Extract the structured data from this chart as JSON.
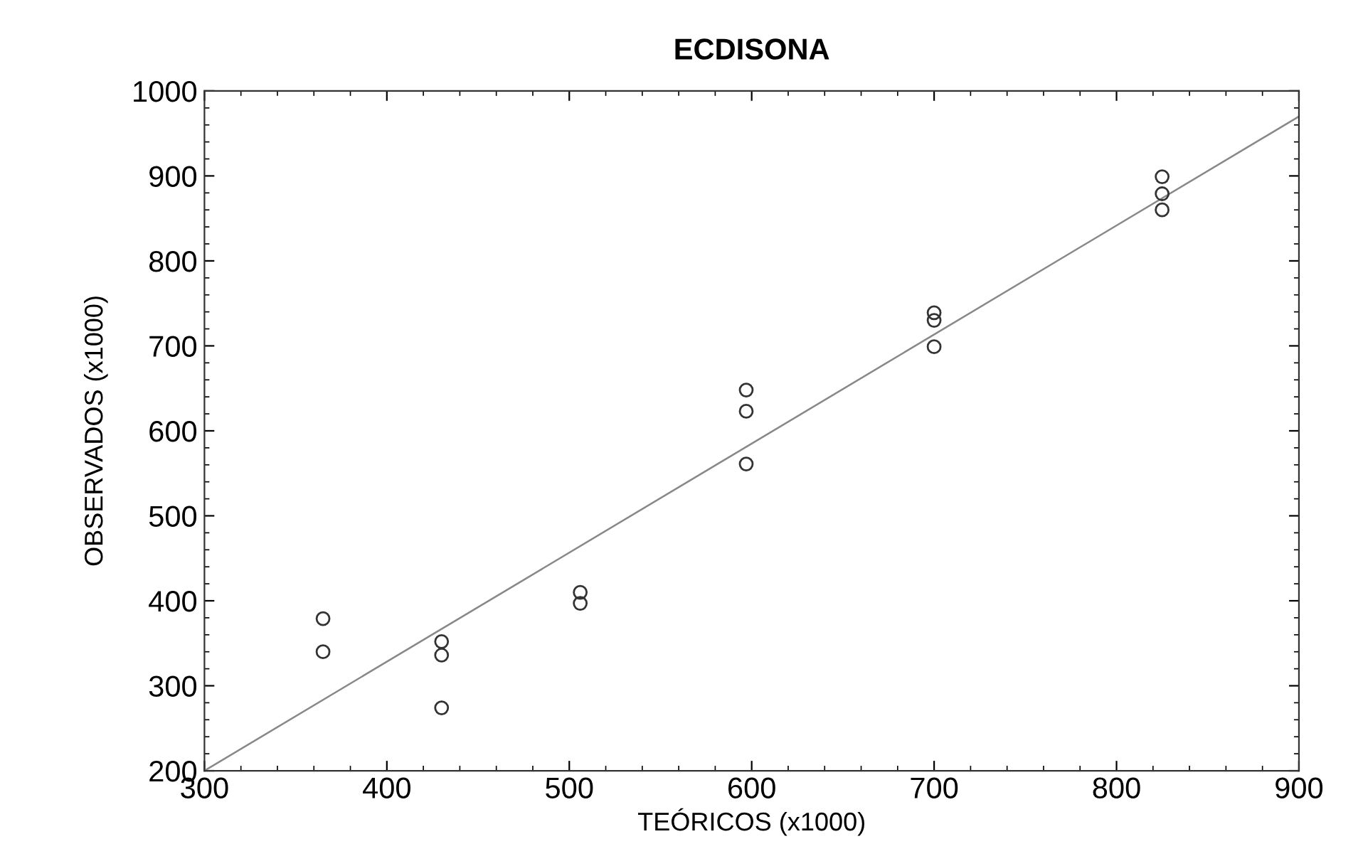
{
  "chart_data": {
    "type": "scatter",
    "title": "ECDISONA",
    "xlabel": "TEÓRICOS (x1000)",
    "ylabel": "OBSERVADOS (x1000)",
    "x": [
      365,
      365,
      430,
      430,
      430,
      506,
      506,
      597,
      597,
      597,
      700,
      700,
      700,
      825,
      825,
      825
    ],
    "series": [
      {
        "color": "#333333",
        "marker": "circle",
        "values": [
          379,
          340,
          352,
          336,
          274,
          410,
          397,
          648,
          623,
          561,
          739,
          730,
          699,
          899,
          879,
          860
        ]
      },
      {
        "type": "line",
        "color": "#888888",
        "marker": "none",
        "x": [
          300,
          900
        ],
        "values": [
          200,
          970
        ]
      }
    ],
    "xlim": [
      300,
      900
    ],
    "ylim": [
      200,
      1000
    ],
    "xticks": [
      300,
      {
        "value": 320,
        "label": null
      },
      {
        "value": 340,
        "label": null
      },
      {
        "value": 360,
        "label": null
      },
      {
        "value": 380,
        "label": null
      },
      400,
      {
        "value": 420,
        "label": null
      },
      {
        "value": 440,
        "label": null
      },
      {
        "value": 460,
        "label": null
      },
      {
        "value": 480,
        "label": null
      },
      500,
      {
        "value": 520,
        "label": null
      },
      {
        "value": 540,
        "label": null
      },
      {
        "value": 560,
        "label": null
      },
      {
        "value": 580,
        "label": null
      },
      600,
      {
        "value": 620,
        "label": null
      },
      {
        "value": 640,
        "label": null
      },
      {
        "value": 660,
        "label": null
      },
      {
        "value": 680,
        "label": null
      },
      700,
      {
        "value": 720,
        "label": null
      },
      {
        "value": 740,
        "label": null
      },
      {
        "value": 760,
        "label": null
      },
      {
        "value": 780,
        "label": null
      },
      800,
      {
        "value": 820,
        "label": null
      },
      {
        "value": 840,
        "label": null
      },
      {
        "value": 860,
        "label": null
      },
      {
        "value": 880,
        "label": null
      },
      900
    ],
    "yticks": [
      200,
      {
        "value": 220,
        "label": null
      },
      {
        "value": 240,
        "label": null
      },
      {
        "value": 260,
        "label": null
      },
      {
        "value": 280,
        "label": null
      },
      300,
      {
        "value": 320,
        "label": null
      },
      {
        "value": 340,
        "label": null
      },
      {
        "value": 360,
        "label": null
      },
      {
        "value": 380,
        "label": null
      },
      400,
      {
        "value": 420,
        "label": null
      },
      {
        "value": 440,
        "label": null
      },
      {
        "value": 460,
        "label": null
      },
      {
        "value": 480,
        "label": null
      },
      500,
      {
        "value": 520,
        "label": null
      },
      {
        "value": 540,
        "label": null
      },
      {
        "value": 560,
        "label": null
      },
      {
        "value": 580,
        "label": null
      },
      600,
      {
        "value": 620,
        "label": null
      },
      {
        "value": 640,
        "label": null
      },
      {
        "value": 660,
        "label": null
      },
      {
        "value": 680,
        "label": null
      },
      700,
      {
        "value": 720,
        "label": null
      },
      {
        "value": 740,
        "label": null
      },
      {
        "value": 760,
        "label": null
      },
      {
        "value": 780,
        "label": null
      },
      800,
      {
        "value": 820,
        "label": null
      },
      {
        "value": 840,
        "label": null
      },
      {
        "value": 860,
        "label": null
      },
      {
        "value": 880,
        "label": null
      },
      900,
      {
        "value": 920,
        "label": null
      },
      {
        "value": 940,
        "label": null
      },
      {
        "value": 960,
        "label": null
      },
      {
        "value": 980,
        "label": null
      },
      1000
    ],
    "grid": false,
    "legend": false
  }
}
